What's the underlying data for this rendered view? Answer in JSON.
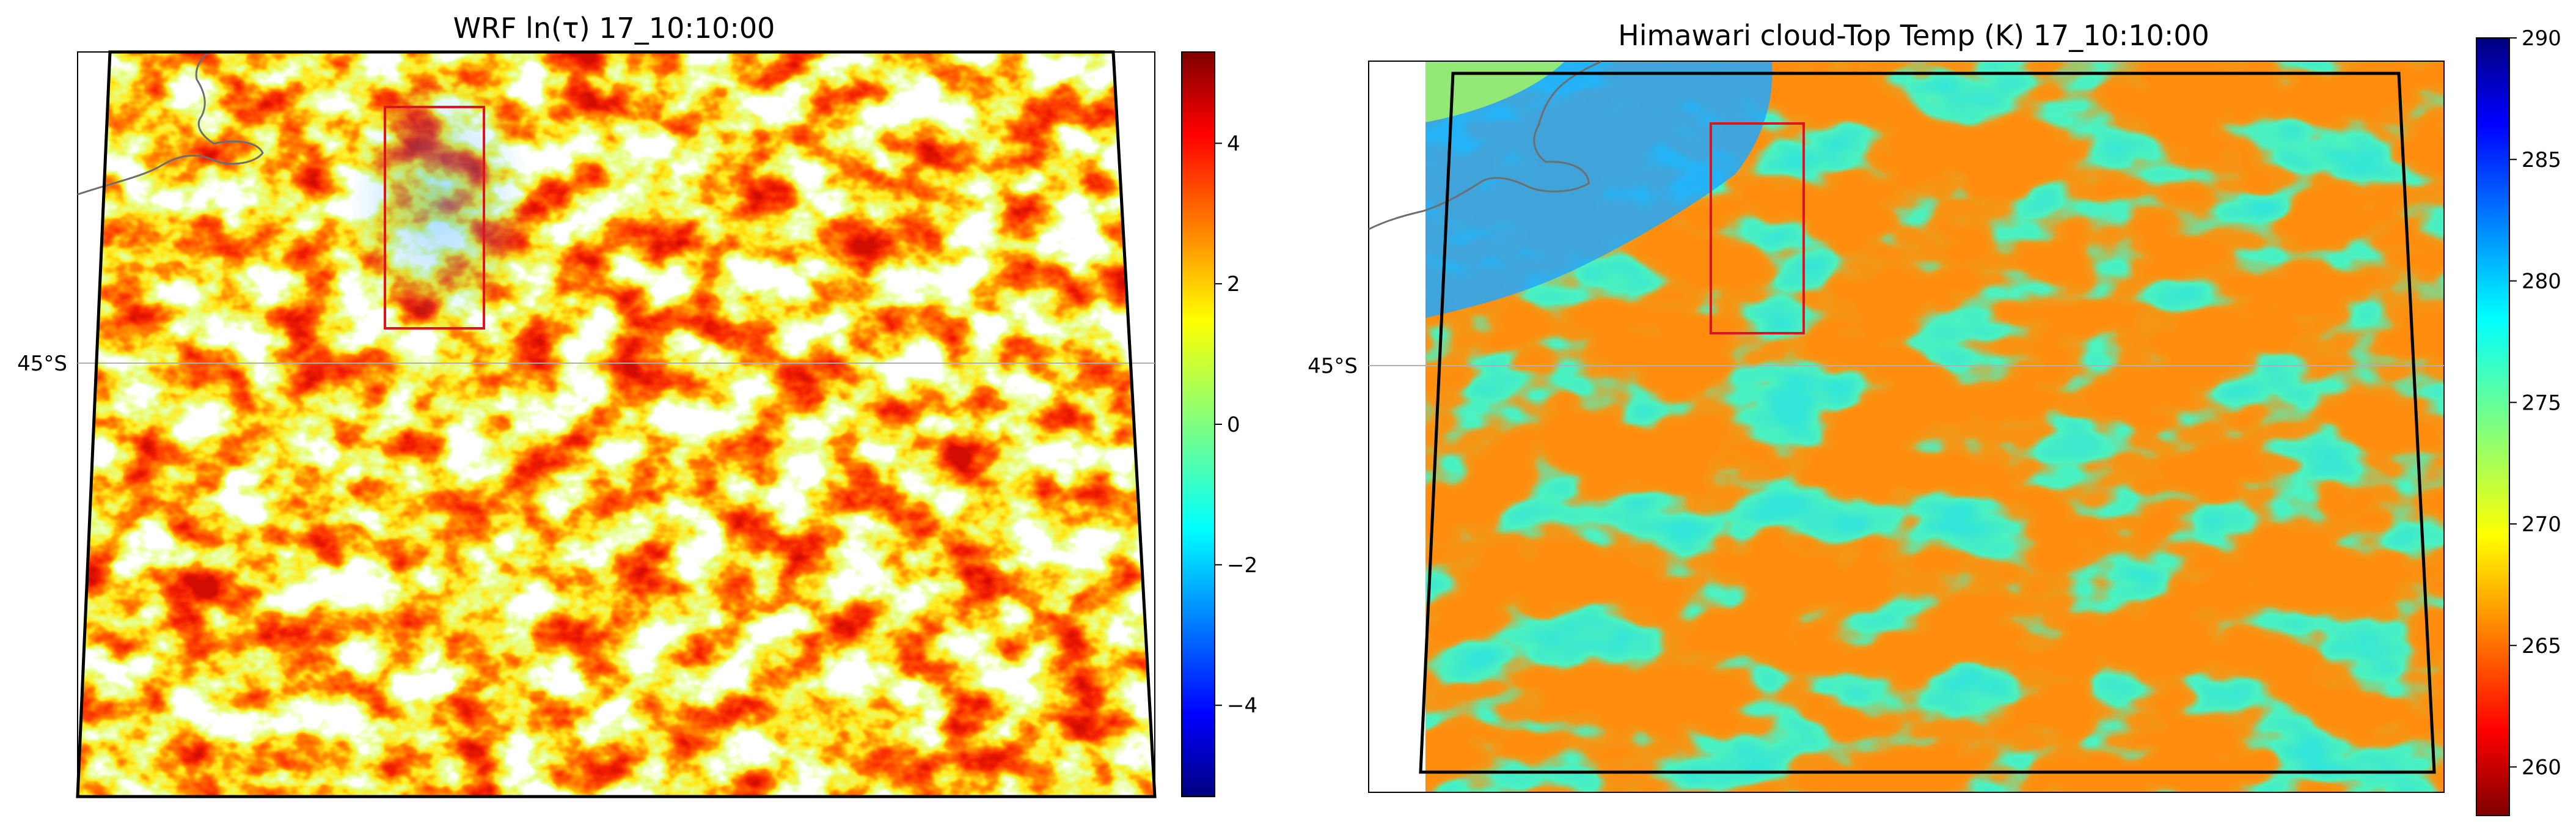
{
  "chart_data": [
    {
      "type": "heatmap",
      "title": "WRF ln(τ) 17_10:10:00",
      "latitude_label": "45°S",
      "colormap": "jet",
      "colorbar": {
        "range": [
          -5.3,
          5.3
        ],
        "ticks": [
          -4,
          -2,
          0,
          2,
          4
        ],
        "tick_labels": [
          "−4",
          "−2",
          "0",
          "2",
          "4"
        ]
      },
      "grid": true,
      "features": [
        "coastline",
        "domain-boundary",
        "red-highlight-box"
      ],
      "missing_values_shown_white": true
    },
    {
      "type": "heatmap",
      "title": "Himawari cloud-Top Temp (K) 17_10:10:00",
      "latitude_label": "45°S",
      "colormap": "jet_r",
      "colorbar": {
        "range": [
          258,
          290
        ],
        "ticks": [
          260,
          265,
          270,
          275,
          280,
          285,
          290
        ],
        "tick_labels": [
          "260",
          "265",
          "270",
          "275",
          "280",
          "285",
          "290"
        ]
      },
      "grid": true,
      "features": [
        "coastline",
        "domain-boundary",
        "red-highlight-box"
      ]
    }
  ],
  "colors": {
    "box": "#e0141e",
    "boundary": "#000000",
    "coast": "#6e6e6e",
    "gridline": "#b0b0b0"
  }
}
